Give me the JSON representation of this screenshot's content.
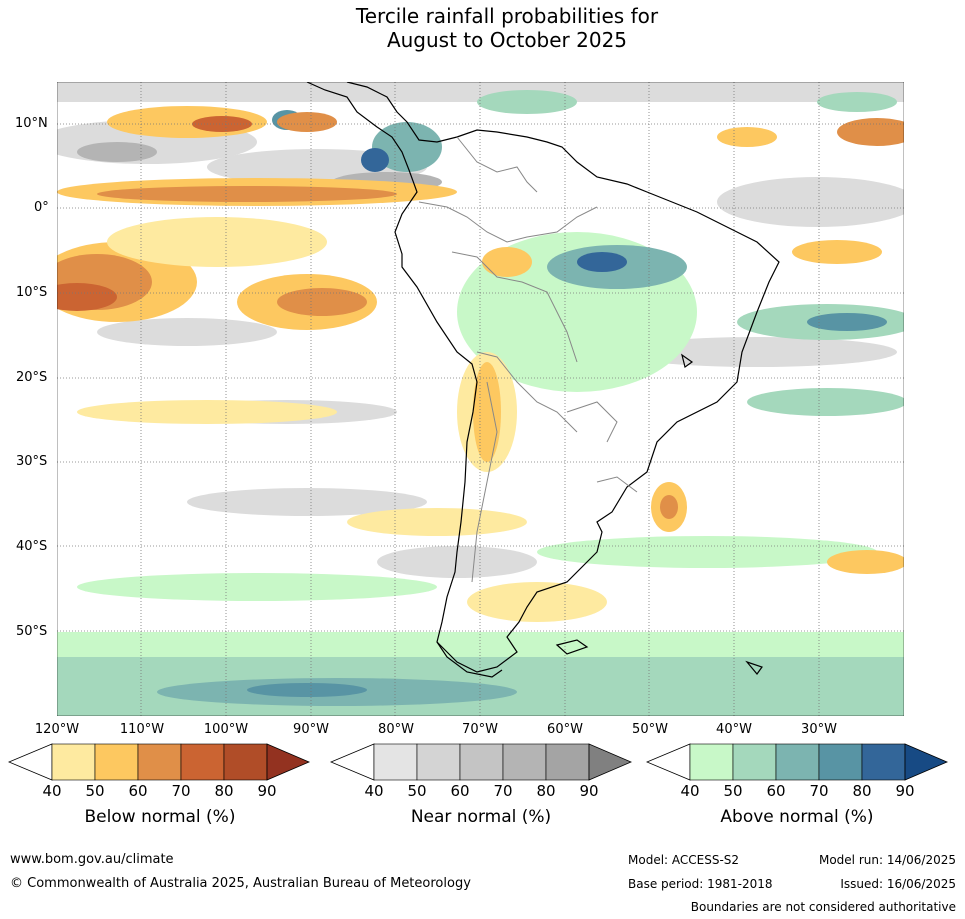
{
  "title_line1": "Tercile rainfall probabilities for",
  "title_line2": "August to October 2025",
  "map": {
    "latitude_labels": [
      "10°N",
      "0°",
      "10°S",
      "20°S",
      "30°S",
      "40°S",
      "50°S"
    ],
    "longitude_labels": [
      "120°W",
      "110°W",
      "100°W",
      "90°W",
      "80°W",
      "70°W",
      "60°W",
      "50°W",
      "40°W",
      "30°W"
    ],
    "colors": {
      "ocean_near": "#dcdcdc",
      "coast": "#000000",
      "border": "#888888",
      "graticule": "#777777"
    }
  },
  "colorbars": [
    {
      "label": "Below normal (%)",
      "ticks": [
        "40",
        "50",
        "60",
        "70",
        "80",
        "90"
      ],
      "colors": [
        "#ffffff",
        "#feeaa0",
        "#fdc860",
        "#e08f48",
        "#cb6432",
        "#b04d28",
        "#933220"
      ]
    },
    {
      "label": "Near normal (%)",
      "ticks": [
        "40",
        "50",
        "60",
        "70",
        "80",
        "90"
      ],
      "colors": [
        "#ffffff",
        "#e4e4e4",
        "#d4d4d4",
        "#c4c4c4",
        "#b4b4b4",
        "#a4a4a4",
        "#808080"
      ]
    },
    {
      "label": "Above normal (%)",
      "ticks": [
        "40",
        "50",
        "60",
        "70",
        "80",
        "90"
      ],
      "colors": [
        "#ffffff",
        "#c8f8c8",
        "#a4d8bc",
        "#7cb4b0",
        "#5894a4",
        "#336699",
        "#174a84"
      ]
    }
  ],
  "footer": {
    "website": "www.bom.gov.au/climate",
    "copyright": "© Commonwealth of Australia 2025, Australian Bureau of Meteorology",
    "model": "Model: ACCESS-S2",
    "model_run": "Model run: 14/06/2025",
    "base_period": "Base period: 1981-2018",
    "issued": "Issued: 16/06/2025",
    "disclaimer": "Boundaries are not considered authoritative"
  }
}
